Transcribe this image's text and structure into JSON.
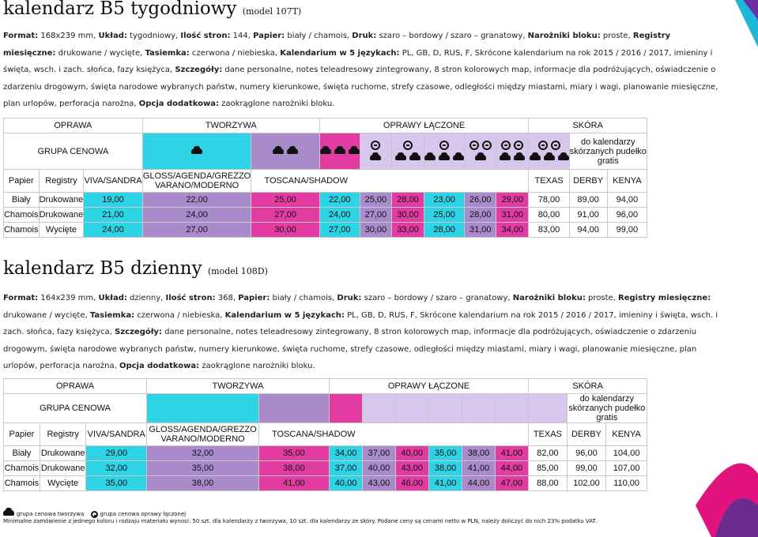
{
  "section1": {
    "title": "kalendarz B5 tygodniowy",
    "model": "(model 107T)",
    "description": [
      {
        "label": "Format:",
        "text": " 168x239 mm, "
      },
      {
        "label": "Układ:",
        "text": " tygodniowy, "
      },
      {
        "label": "Ilość stron:",
        "text": " 144, "
      },
      {
        "label": "Papier:",
        "text": " biały / chamois, "
      },
      {
        "label": "Druk:",
        "text": " szaro – bordowy / szaro – granatowy, "
      },
      {
        "label": "Narożniki bloku:",
        "text": " proste, "
      },
      {
        "label": "Registry miesięczne:",
        "text": " drukowane / wycięte, "
      },
      {
        "label": "Tasiemka:",
        "text": " czerwona / niebieska, "
      },
      {
        "label": "Kalendarium w 5 językach:",
        "text": " PL, GB, D, RUS, F, Skrócone kalendarium na rok 2015 / 2016 / 2017, imieniny i święta, wsch. i zach. słońca, fazy księżyca, "
      },
      {
        "label": "Szczegóły:",
        "text": " dane personalne, notes teleadresowy zintegrowany, 8 stron kolorowych map, informacje dla podróżujących, oświadczenie o zdarzeniu drogowym, święta narodowe wybranych państw, numery kierunkowe, święta ruchome, strefy czasowe, odległości między miastami, miary i wagi, planowanie miesięczne, plan urlopów, perforacja narożna, "
      },
      {
        "label": "Opcja dodatkowa:",
        "text": " zaokrąglone narożniki bloku."
      }
    ],
    "table": {
      "groups": [
        "OPRAWA",
        "TWORZYWA",
        "OPRAWY ŁĄCZONE",
        "SKÓRA"
      ],
      "grupa_cenowa": "GRUPA CENOWA",
      "gratis": "do kalendarzy skórzanych pudełko gratis",
      "col_papier": "Papier",
      "col_registry": "Registry",
      "materials": [
        "VIVA/SANDRA",
        "GLOSS/AGENDA/GREZZO VARANO/MODERNO",
        "TOSCANA/SHADOW"
      ],
      "leathers": [
        "TEXAS",
        "DERBY",
        "KENYA"
      ],
      "rows": [
        {
          "papier": "Biały",
          "registry": "Drukowane",
          "values": [
            "19,00",
            "22,00",
            "25,00",
            "22,00",
            "25,00",
            "28,00",
            "23,00",
            "26,00",
            "29,00",
            "78,00",
            "89,00",
            "94,00"
          ]
        },
        {
          "papier": "Chamois",
          "registry": "Drukowane",
          "values": [
            "21,00",
            "24,00",
            "27,00",
            "24,00",
            "27,00",
            "30,00",
            "25,00",
            "28,00",
            "31,00",
            "80,00",
            "91,00",
            "96,00"
          ]
        },
        {
          "papier": "Chamois",
          "registry": "Wycięte",
          "values": [
            "24,00",
            "27,00",
            "30,00",
            "27,00",
            "30,00",
            "33,00",
            "28,00",
            "31,00",
            "34,00",
            "83,00",
            "94,00",
            "99,00"
          ]
        }
      ]
    }
  },
  "section2": {
    "title": "kalendarz B5 dzienny",
    "model": "(model 108D)",
    "description": [
      {
        "label": "Format:",
        "text": " 164x239 mm, "
      },
      {
        "label": "Układ:",
        "text": " dzienny, "
      },
      {
        "label": "Ilość stron:",
        "text": " 368, "
      },
      {
        "label": "Papier:",
        "text": " biały / chamois, "
      },
      {
        "label": "Druk:",
        "text": " szaro – bordowy / szaro – granatowy, "
      },
      {
        "label": "Narożniki bloku:",
        "text": " proste, "
      },
      {
        "label": "Registry miesięczne:",
        "text": " drukowane / wycięte, "
      },
      {
        "label": "Tasiemka:",
        "text": " czerwona / niebieska, "
      },
      {
        "label": "Kalendarium w 5 językach:",
        "text": " PL, GB, D, RUS, F, Skrócone kalendarium na rok 2015 / 2016 / 2017, imieniny i święta, wsch. i zach. słońca, fazy księżyca, "
      },
      {
        "label": "Szczegóły:",
        "text": " dane personalne, notes teleadresowy zintegrowany, 8 stron kolorowych map, informacje dla podróżujących, oświadczenie o zdarzeniu drogowym, święta narodowe wybranych państw, numery kierunkowe, święta ruchome, strefy czasowe, odległości między miastami, miary i wagi, planowanie miesięczne, plan urlopów, perforacja narożna, "
      },
      {
        "label": "Opcja dodatkowa:",
        "text": " zaokrąglone narożniki bloku."
      }
    ],
    "table": {
      "groups": [
        "OPRAWA",
        "TWORZYWA",
        "OPRAWY ŁĄCZONE",
        "SKÓRA"
      ],
      "grupa_cenowa": "GRUPA CENOWA",
      "gratis": "do kalendarzy skórzanych pudełko gratis",
      "col_papier": "Papier",
      "col_registry": "Registry",
      "materials": [
        "VIVA/SANDRA",
        "GLOSS/AGENDA/GREZZO VARANO/MODERNO",
        "TOSCANA/SHADOW"
      ],
      "leathers": [
        "TEXAS",
        "DERBY",
        "KENYA"
      ],
      "rows": [
        {
          "papier": "Biały",
          "registry": "Drukowane",
          "values": [
            "29,00",
            "32,00",
            "35,00",
            "34,00",
            "37,00",
            "40,00",
            "35,00",
            "38,00",
            "41,00",
            "82,00",
            "96,00",
            "104,00"
          ]
        },
        {
          "papier": "Chamois",
          "registry": "Drukowane",
          "values": [
            "32,00",
            "35,00",
            "38,00",
            "37,00",
            "40,00",
            "43,00",
            "38,00",
            "41,00",
            "44,00",
            "85,00",
            "99,00",
            "107,00"
          ]
        },
        {
          "papier": "Chamois",
          "registry": "Wycięte",
          "values": [
            "35,00",
            "38,00",
            "41,00",
            "40,00",
            "43,00",
            "46,00",
            "41,00",
            "44,00",
            "47,00",
            "88,00",
            "102,00",
            "110,00"
          ]
        }
      ]
    }
  },
  "footer": {
    "legend_tworzywa": "grupa cenowa tworzywa",
    "legend_laczone": "grupa cenowa oprawy łączonej",
    "note": "Minimalne zamówienie z jednego koloru i rodzaju materiału wynosi: 50 szt. dla kalendarzy z tworzywa, 10 szt. dla kalendarzy ze skóry. Podane ceny są cenami netto w PLN, należy doliczyć do nich 23% podatku VAT."
  },
  "colors": {
    "cyan": "#2fd3e6",
    "purple": "#a98bcc",
    "pink": "#e23ba2",
    "light_purple": "#d7c7ec"
  }
}
